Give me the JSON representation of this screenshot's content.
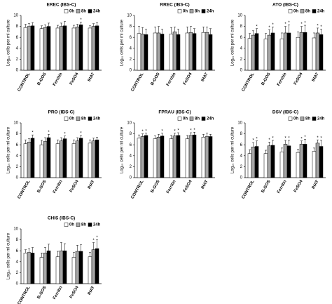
{
  "chart_data": [
    {
      "type": "bar",
      "title": "EREC (IBS-C)",
      "ylabel": "Log₁₀ cells per ml culture",
      "categories": [
        "CONTROL",
        "B-GOS",
        "Ferritin",
        "FeSO4",
        "IHAT"
      ],
      "ylim": [
        0,
        10
      ],
      "yticks": [
        0,
        2,
        4,
        6,
        8,
        10
      ],
      "series": [
        {
          "name": "0h",
          "color": "#ffffff",
          "values": [
            7.8,
            7.6,
            7.7,
            7.7,
            7.7
          ],
          "errors": [
            0.6,
            0.5,
            0.5,
            0.5,
            0.4
          ]
        },
        {
          "name": "8h",
          "color": "#a6a6a6",
          "values": [
            8.0,
            7.8,
            8.0,
            7.9,
            8.0
          ],
          "errors": [
            0.5,
            0.5,
            0.6,
            0.5,
            0.5
          ]
        },
        {
          "name": "24h",
          "color": "#000000",
          "values": [
            8.1,
            8.0,
            8.1,
            8.3,
            8.1
          ],
          "errors": [
            0.6,
            0.6,
            0.8,
            0.5,
            0.6
          ]
        }
      ],
      "annotations": [
        {
          "text": "*",
          "category": 3,
          "series": 2
        }
      ]
    },
    {
      "type": "bar",
      "title": "RREC (IBS-C)",
      "ylabel": "Log₁₀ cells per ml culture",
      "categories": [
        "CONTROL",
        "B-GOS",
        "Ferritin",
        "FeSO4",
        "IHAT"
      ],
      "ylim": [
        0,
        10
      ],
      "yticks": [
        0,
        2,
        4,
        6,
        8,
        10
      ],
      "series": [
        {
          "name": "0h",
          "color": "#ffffff",
          "values": [
            6.7,
            6.8,
            6.6,
            6.8,
            6.9
          ],
          "errors": [
            1.3,
            1.1,
            1.2,
            1.1,
            1.0
          ]
        },
        {
          "name": "8h",
          "color": "#a6a6a6",
          "values": [
            6.6,
            6.8,
            7.0,
            6.9,
            6.9
          ],
          "errors": [
            1.2,
            1.2,
            0.9,
            1.1,
            1.0
          ]
        },
        {
          "name": "24h",
          "color": "#000000",
          "values": [
            6.5,
            6.6,
            6.5,
            6.7,
            6.5
          ],
          "errors": [
            1.0,
            0.9,
            1.0,
            0.9,
            1.1
          ]
        }
      ],
      "annotations": []
    },
    {
      "type": "bar",
      "title": "ATO (IBS-C)",
      "ylabel": "Log₁₀ cells per ml culture",
      "categories": [
        "CONTROL",
        "B-GOS",
        "Ferritin",
        "FeSO4",
        "IHAT"
      ],
      "ylim": [
        0,
        10
      ],
      "yticks": [
        0,
        2,
        4,
        6,
        8,
        10
      ],
      "series": [
        {
          "name": "0h",
          "color": "#ffffff",
          "values": [
            5.8,
            5.7,
            5.7,
            6.0,
            5.9
          ],
          "errors": [
            0.9,
            1.0,
            1.1,
            1.0,
            0.9
          ]
        },
        {
          "name": "8h",
          "color": "#a6a6a6",
          "values": [
            6.4,
            6.4,
            6.8,
            6.9,
            6.8
          ],
          "errors": [
            0.8,
            1.0,
            1.2,
            1.1,
            0.9
          ]
        },
        {
          "name": "24h",
          "color": "#000000",
          "values": [
            6.7,
            6.8,
            6.8,
            6.9,
            6.5
          ],
          "errors": [
            0.9,
            1.1,
            1.5,
            1.3,
            1.0
          ]
        }
      ],
      "annotations": [
        {
          "text": "*",
          "category": 0,
          "series": 2
        },
        {
          "text": "*",
          "category": 1,
          "series": 1
        },
        {
          "text": "*",
          "category": 1,
          "series": 2
        },
        {
          "text": "*",
          "category": 2,
          "series": 1
        },
        {
          "text": "*",
          "category": 2,
          "series": 2
        },
        {
          "text": "*",
          "category": 3,
          "series": 1
        },
        {
          "text": "*",
          "category": 3,
          "series": 2
        },
        {
          "text": "*",
          "category": 4,
          "series": 1
        },
        {
          "text": "*",
          "category": 4,
          "series": 2
        }
      ]
    },
    {
      "type": "bar",
      "title": "PRO (IBS-C)",
      "ylabel": "Log₁₀ cells per ml culture",
      "categories": [
        "CONTROL",
        "B-GOS",
        "Ferritin",
        "FeSO4",
        "IHAT"
      ],
      "ylim": [
        0,
        10
      ],
      "yticks": [
        0,
        2,
        4,
        6,
        8,
        10
      ],
      "series": [
        {
          "name": "0h",
          "color": "#ffffff",
          "values": [
            6.2,
            6.0,
            6.2,
            6.2,
            6.3
          ],
          "errors": [
            0.7,
            0.8,
            0.7,
            0.7,
            0.6
          ]
        },
        {
          "name": "8h",
          "color": "#a6a6a6",
          "values": [
            6.5,
            6.6,
            6.7,
            6.7,
            6.7
          ],
          "errors": [
            0.6,
            0.7,
            0.6,
            0.6,
            0.5
          ]
        },
        {
          "name": "24h",
          "color": "#000000",
          "values": [
            7.2,
            7.3,
            7.1,
            7.2,
            6.9
          ],
          "errors": [
            0.6,
            0.6,
            0.5,
            0.5,
            0.5
          ]
        }
      ],
      "annotations": [
        {
          "text": "*",
          "category": 0,
          "series": 2
        },
        {
          "text": "*",
          "category": 1,
          "series": 2
        },
        {
          "text": "*",
          "category": 2,
          "series": 2
        },
        {
          "text": "*",
          "category": 3,
          "series": 2
        }
      ]
    },
    {
      "type": "bar",
      "title": "FPRAU (IBS-C)",
      "ylabel": "Log₁₀ cells per ml culture",
      "categories": [
        "CONTROL",
        "B-GOS",
        "Ferritin",
        "FeSO4",
        "IHAT"
      ],
      "ylim": [
        0,
        10
      ],
      "yticks": [
        0,
        2,
        4,
        6,
        8,
        10
      ],
      "series": [
        {
          "name": "0h",
          "color": "#ffffff",
          "values": [
            7.2,
            7.1,
            7.1,
            7.1,
            7.4
          ],
          "errors": [
            0.6,
            0.5,
            0.6,
            0.6,
            0.5
          ]
        },
        {
          "name": "8h",
          "color": "#a6a6a6",
          "values": [
            7.5,
            7.4,
            7.6,
            7.7,
            7.5
          ],
          "errors": [
            0.5,
            0.5,
            0.5,
            0.5,
            0.6
          ]
        },
        {
          "name": "24h",
          "color": "#000000",
          "values": [
            7.7,
            7.6,
            7.7,
            7.8,
            7.5
          ],
          "errors": [
            0.4,
            0.5,
            0.5,
            0.5,
            0.4
          ]
        }
      ],
      "annotations": [
        {
          "text": "*",
          "category": 0,
          "series": 1
        },
        {
          "text": "*",
          "category": 0,
          "series": 2
        },
        {
          "text": "*",
          "category": 1,
          "series": 2
        },
        {
          "text": "*",
          "category": 2,
          "series": 1
        },
        {
          "text": "*",
          "category": 2,
          "series": 2
        },
        {
          "text": "*",
          "category": 3,
          "series": 1
        },
        {
          "text": "*",
          "category": 3,
          "series": 2
        }
      ]
    },
    {
      "type": "bar",
      "title": "DSV (IBS-C)",
      "ylabel": "Log₁₀ cells per ml culture",
      "categories": [
        "CONTROL",
        "B-GOS",
        "Ferritin",
        "FeSO4",
        "IHAT"
      ],
      "ylim": [
        0,
        10
      ],
      "yticks": [
        0,
        2,
        4,
        6,
        8,
        10
      ],
      "series": [
        {
          "name": "0h",
          "color": "#ffffff",
          "values": [
            4.4,
            4.4,
            4.7,
            4.6,
            4.8
          ],
          "errors": [
            0.7,
            0.6,
            0.7,
            0.6,
            0.6
          ]
        },
        {
          "name": "8h",
          "color": "#a6a6a6",
          "values": [
            5.6,
            5.8,
            6.1,
            6.1,
            6.3
          ],
          "errors": [
            0.8,
            0.7,
            0.7,
            0.6,
            0.6
          ]
        },
        {
          "name": "24h",
          "color": "#000000",
          "values": [
            5.7,
            5.9,
            5.8,
            6.1,
            5.7
          ],
          "errors": [
            1.0,
            0.9,
            1.0,
            0.9,
            1.1
          ]
        }
      ],
      "annotations": [
        {
          "text": "*",
          "category": 0,
          "series": 1
        },
        {
          "text": "*",
          "category": 0,
          "series": 2
        },
        {
          "text": "*",
          "category": 1,
          "series": 1
        },
        {
          "text": "*",
          "category": 1,
          "series": 2
        },
        {
          "text": "*",
          "category": 2,
          "series": 1
        },
        {
          "text": "*",
          "category": 2,
          "series": 2
        },
        {
          "text": "*",
          "category": 3,
          "series": 1
        },
        {
          "text": "*",
          "category": 3,
          "series": 2
        },
        {
          "text": "*",
          "category": 4,
          "series": 1
        },
        {
          "text": "*",
          "category": 4,
          "series": 2
        }
      ]
    },
    {
      "type": "bar",
      "title": "CHIS (IBS-C)",
      "ylabel": "Log₁₀ cells per ml culture",
      "categories": [
        "CONTROL",
        "B-GOS",
        "Ferritin",
        "FeSO4",
        "IHAT"
      ],
      "ylim": [
        0,
        10
      ],
      "yticks": [
        0,
        2,
        4,
        6,
        8,
        10
      ],
      "series": [
        {
          "name": "0h",
          "color": "#ffffff",
          "values": [
            5.6,
            4.8,
            4.9,
            4.8,
            4.9
          ],
          "errors": [
            0.6,
            0.8,
            1.0,
            0.9,
            0.8
          ]
        },
        {
          "name": "8h",
          "color": "#a6a6a6",
          "values": [
            5.7,
            5.6,
            6.0,
            5.9,
            6.2
          ],
          "errors": [
            0.7,
            1.0,
            1.5,
            1.1,
            1.3
          ]
        },
        {
          "name": "24h",
          "color": "#000000",
          "values": [
            5.6,
            6.0,
            6.0,
            5.9,
            6.4
          ],
          "errors": [
            1.0,
            1.2,
            1.3,
            1.2,
            1.6
          ]
        }
      ],
      "annotations": [
        {
          "text": "*",
          "category": 4,
          "series": 1
        },
        {
          "text": "*",
          "category": 4,
          "series": 2
        }
      ]
    }
  ]
}
